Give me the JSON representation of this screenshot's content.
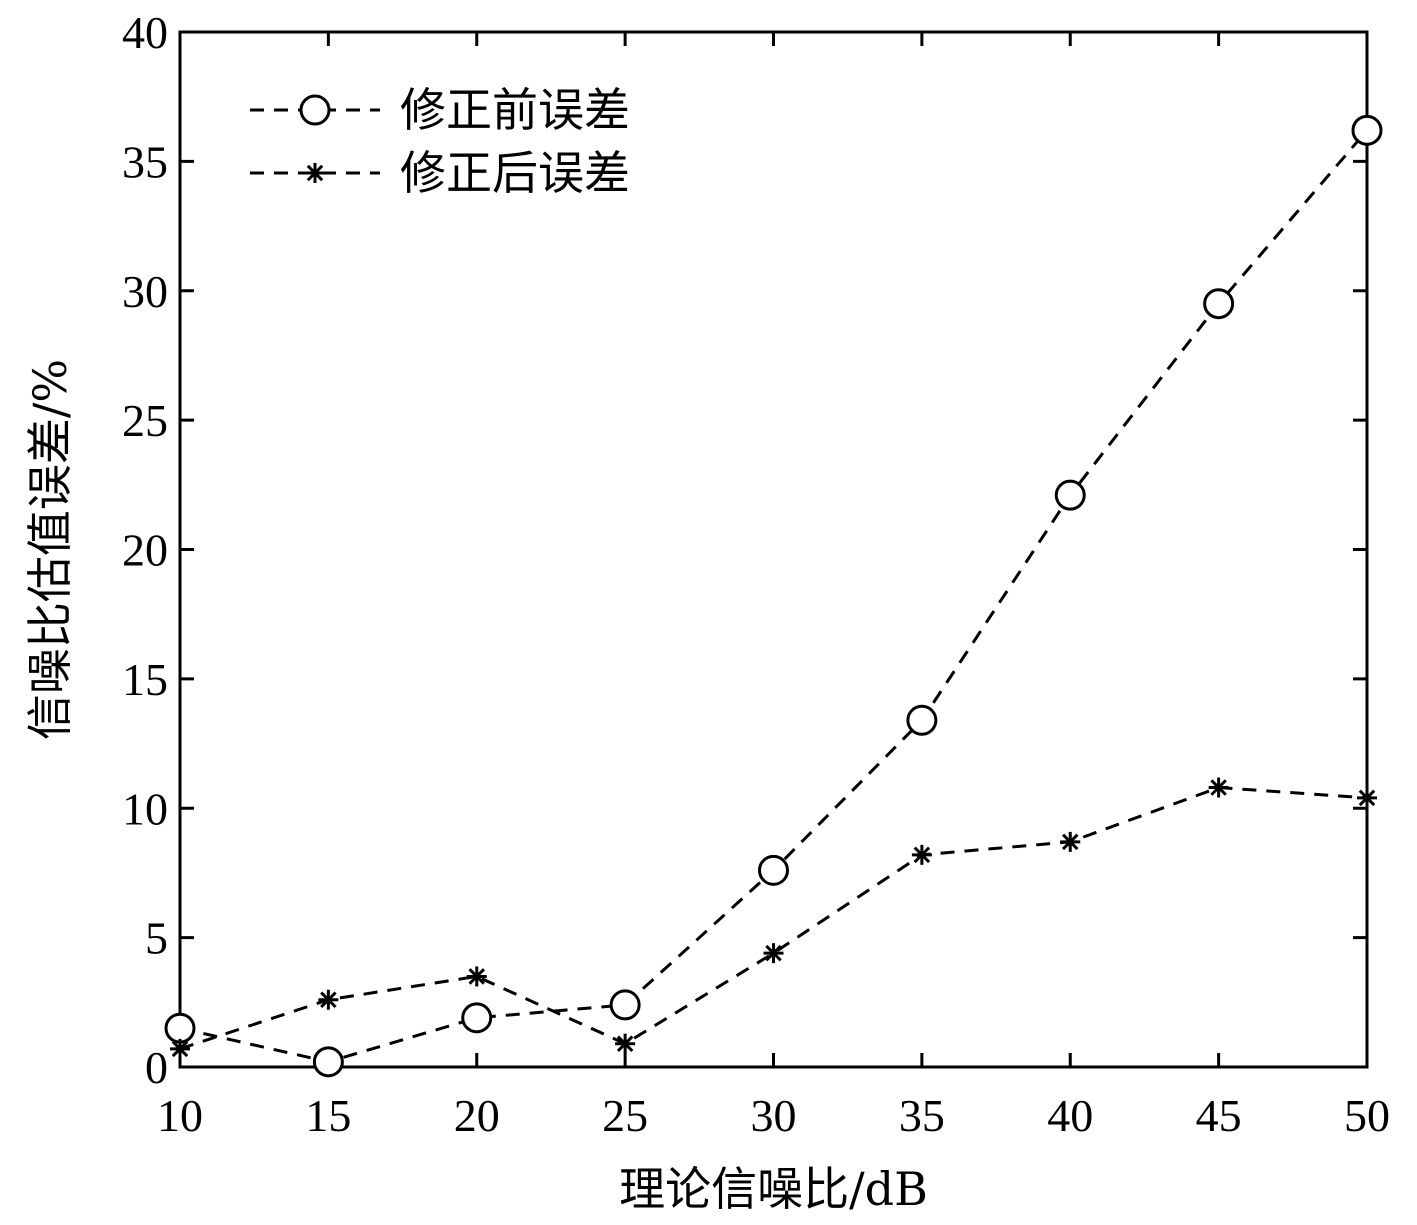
{
  "chart_data": {
    "type": "line",
    "title": "",
    "xlabel": "理论信噪比/dB",
    "ylabel": "信噪比估值误差/%",
    "xlim": [
      10,
      50
    ],
    "ylim": [
      0,
      40
    ],
    "xticks": [
      10,
      15,
      20,
      25,
      30,
      35,
      40,
      45,
      50
    ],
    "yticks": [
      0,
      5,
      10,
      15,
      20,
      25,
      30,
      35,
      40
    ],
    "grid": false,
    "legend_position": "top-left",
    "x": [
      10,
      15,
      20,
      25,
      30,
      35,
      40,
      45,
      50
    ],
    "series": [
      {
        "name": "修正前误差",
        "marker": "circle",
        "line_style": "dashed",
        "color": "#000000",
        "values": [
          1.5,
          0.2,
          1.9,
          2.4,
          7.6,
          13.4,
          22.1,
          29.5,
          36.2
        ]
      },
      {
        "name": "修正后误差",
        "marker": "star",
        "line_style": "dashed",
        "color": "#000000",
        "values": [
          0.7,
          2.6,
          3.5,
          0.9,
          4.4,
          8.2,
          8.7,
          10.8,
          10.4
        ]
      }
    ]
  }
}
